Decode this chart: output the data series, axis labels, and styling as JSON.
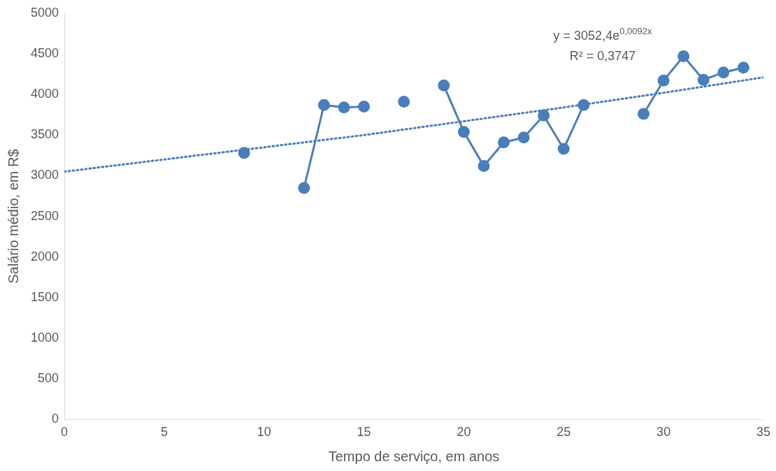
{
  "chart_data": {
    "type": "line",
    "xlabel": "Tempo de serviço, em anos",
    "ylabel": "Salário médio, em R$",
    "x": [
      9,
      10,
      11,
      12,
      13,
      14,
      15,
      16,
      17,
      18,
      19,
      20,
      21,
      22,
      23,
      24,
      25,
      26,
      27,
      28,
      29,
      30,
      31,
      32,
      33,
      34
    ],
    "series": [
      {
        "color": "#4a7ebb",
        "marker": "circle",
        "line_style": "solid",
        "values": [
          3280,
          null,
          null,
          2850,
          3870,
          3840,
          3850,
          null,
          3910,
          null,
          4110,
          3540,
          3120,
          3410,
          3470,
          3740,
          3330,
          3870,
          null,
          null,
          3760,
          4170,
          4470,
          4180,
          4270,
          4330
        ]
      },
      {
        "color": "#4a7ebb",
        "marker": "none",
        "line_style": "dotted",
        "x": [
          0,
          5,
          10,
          15,
          20,
          25,
          30,
          35
        ],
        "values": [
          3050,
          3200,
          3350,
          3500,
          3670,
          3840,
          4020,
          4210
        ]
      }
    ],
    "xlim": [
      0,
      35
    ],
    "xticks": [
      0,
      5,
      10,
      15,
      20,
      25,
      30,
      35
    ],
    "ylim": [
      0,
      5000
    ],
    "yticks": [
      0,
      500,
      1000,
      1500,
      2000,
      2500,
      3000,
      3500,
      4000,
      4500,
      5000
    ],
    "grid": false,
    "legend": false,
    "annotations": [
      "y = 3052,4e$^{0,0092x}$",
      "R² = 0,3747"
    ]
  }
}
